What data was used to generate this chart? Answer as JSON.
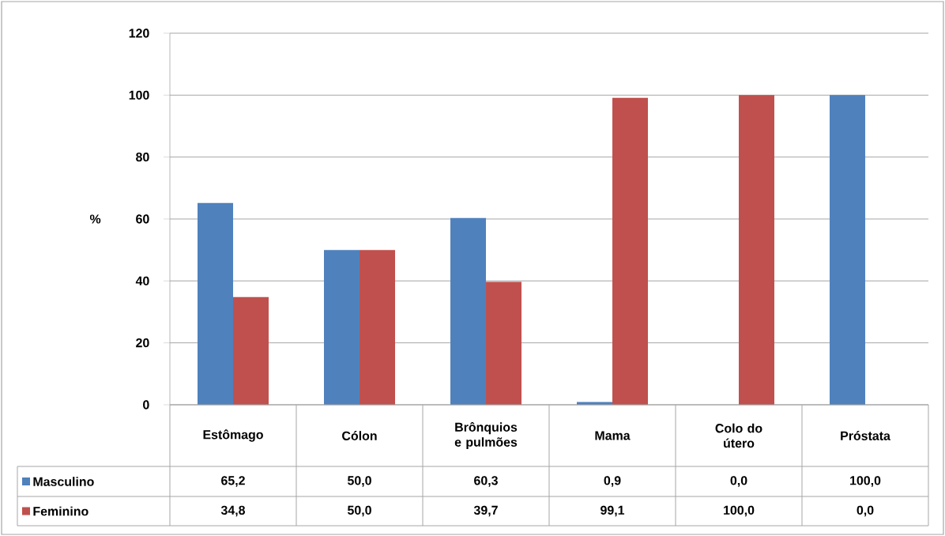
{
  "chart_data": {
    "type": "bar",
    "ylabel": "%",
    "categories": [
      "Estômago",
      "Cólon",
      "Brônquios e pulmões",
      "Mama",
      "Colo do útero",
      "Próstata"
    ],
    "series": [
      {
        "name": "Masculino",
        "color": "#4f81bd",
        "values": [
          65.2,
          50.0,
          60.3,
          0.9,
          0.0,
          100.0
        ],
        "value_labels": [
          "65,2",
          "50,0",
          "60,3",
          "0,9",
          "0,0",
          "100,0"
        ]
      },
      {
        "name": "Feminino",
        "color": "#c0504d",
        "values": [
          34.8,
          50.0,
          39.7,
          99.1,
          100.0,
          0.0
        ],
        "value_labels": [
          "34,8",
          "50,0",
          "39,7",
          "99,1",
          "100,0",
          "0,0"
        ]
      }
    ],
    "ylim": [
      0,
      120
    ],
    "yticks": [
      0,
      20,
      40,
      60,
      80,
      100,
      120
    ],
    "grid": "y",
    "legend": "bottom"
  }
}
